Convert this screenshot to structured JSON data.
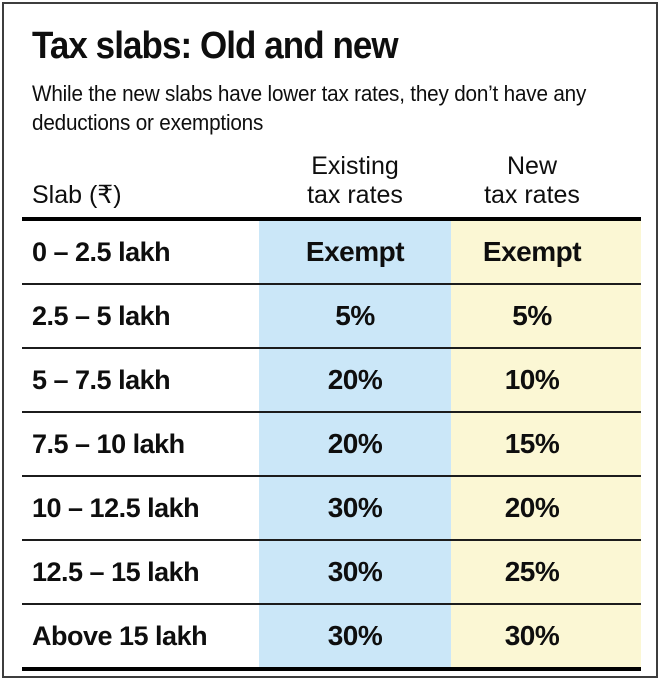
{
  "header": {
    "title": "Tax slabs: Old and new",
    "subtitle": "While the new slabs have lower tax rates, they don’t have any\ndeductions or exemptions"
  },
  "colors": {
    "existing_column": "#cbe7f8",
    "new_column": "#fbf7d4",
    "rule": "#000000",
    "frame_border": "#3d3d3d"
  },
  "table": {
    "columns": [
      {
        "label": "Slab (₹)"
      },
      {
        "label": "Existing\ntax rates",
        "color": "#cbe7f8"
      },
      {
        "label": "New\ntax rates",
        "color": "#fbf7d4"
      }
    ],
    "rows": [
      {
        "slab": "0 – 2.5 lakh",
        "existing": "Exempt",
        "new": "Exempt"
      },
      {
        "slab": "2.5 – 5 lakh",
        "existing": "5%",
        "new": "5%"
      },
      {
        "slab": "5 – 7.5 lakh",
        "existing": "20%",
        "new": "10%"
      },
      {
        "slab": "7.5 – 10 lakh",
        "existing": "20%",
        "new": "15%"
      },
      {
        "slab": "10 – 12.5 lakh",
        "existing": "30%",
        "new": "20%"
      },
      {
        "slab": "12.5 – 15 lakh",
        "existing": "30%",
        "new": "25%"
      },
      {
        "slab": "Above 15 lakh",
        "existing": "30%",
        "new": "30%"
      }
    ]
  },
  "chart_data": {
    "type": "table",
    "title": "Tax slabs: Old and new",
    "subtitle": "While the new slabs have lower tax rates, they don’t have any deductions or exemptions",
    "columns": [
      "Slab (₹)",
      "Existing tax rates",
      "New tax rates"
    ],
    "rows": [
      [
        "0–2.5 lakh",
        "Exempt",
        "Exempt"
      ],
      [
        "2.5–5 lakh",
        "5%",
        "5%"
      ],
      [
        "5–7.5 lakh",
        "20%",
        "10%"
      ],
      [
        "7.5–10 lakh",
        "20%",
        "15%"
      ],
      [
        "10–12.5 lakh",
        "30%",
        "20%"
      ],
      [
        "12.5–15 lakh",
        "30%",
        "25%"
      ],
      [
        "Above 15 lakh",
        "30%",
        "30%"
      ]
    ],
    "layout_hints": {
      "existing_column_background": "#cbe7f8",
      "new_column_background": "#fbf7d4",
      "row_separators": "thin black rules, thick rules above first and below last data row"
    }
  }
}
